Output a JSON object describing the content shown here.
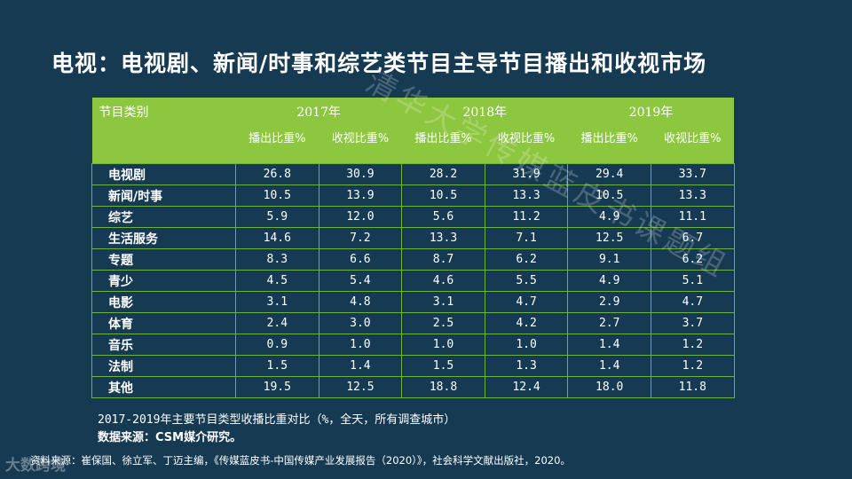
{
  "title": "电视：电视剧、新闻/时事和综艺类节目主导节目播出和收视市场",
  "table": {
    "category_header": "节目类别",
    "years": [
      "2017年",
      "2018年",
      "2019年"
    ],
    "sub_headers": [
      "播出比重%",
      "收视比重%",
      "播出比重%",
      "收视比重%",
      "播出比重%",
      "收视比重%"
    ],
    "rows": [
      {
        "category": "电视剧",
        "values": [
          "26.8",
          "30.9",
          "28.2",
          "31.9",
          "29.4",
          "33.7"
        ]
      },
      {
        "category": "新闻/时事",
        "values": [
          "10.5",
          "13.9",
          "10.5",
          "13.3",
          "10.5",
          "13.3"
        ]
      },
      {
        "category": "综艺",
        "values": [
          "5.9",
          "12.0",
          "5.6",
          "11.2",
          "4.9",
          "11.1"
        ]
      },
      {
        "category": "生活服务",
        "values": [
          "14.6",
          "7.2",
          "13.3",
          "7.1",
          "12.5",
          "6.7"
        ]
      },
      {
        "category": "专题",
        "values": [
          "8.3",
          "6.6",
          "8.7",
          "6.2",
          "9.1",
          "6.2"
        ]
      },
      {
        "category": "青少",
        "values": [
          "4.5",
          "5.4",
          "4.6",
          "5.5",
          "4.9",
          "5.1"
        ]
      },
      {
        "category": "电影",
        "values": [
          "3.1",
          "4.8",
          "3.1",
          "4.7",
          "2.9",
          "4.7"
        ]
      },
      {
        "category": "体育",
        "values": [
          "2.4",
          "3.0",
          "2.5",
          "4.2",
          "2.7",
          "3.7"
        ]
      },
      {
        "category": "音乐",
        "values": [
          "0.9",
          "1.0",
          "1.0",
          "1.0",
          "1.4",
          "1.2"
        ]
      },
      {
        "category": "法制",
        "values": [
          "1.5",
          "1.4",
          "1.5",
          "1.3",
          "1.4",
          "1.2"
        ]
      },
      {
        "category": "其他",
        "values": [
          "19.5",
          "12.5",
          "18.8",
          "12.4",
          "18.0",
          "11.8"
        ]
      }
    ]
  },
  "caption": "2017-2019年主要节目类型收播比重对比（%，全天，所有调查城市）",
  "data_source": "数据来源：CSM媒介研究。",
  "reference": "资料来源：崔保国、徐立军、丁迈主编，《传媒蓝皮书-中国传媒产业发展报告（2020）》，社会科学文献出版社，2020。",
  "watermark": "清华大学传媒蓝皮书课题组",
  "logo": "大数跨境",
  "colors": {
    "background": "#163a52",
    "header_green": "#8dc63f",
    "grid_green": "#6db33f"
  }
}
